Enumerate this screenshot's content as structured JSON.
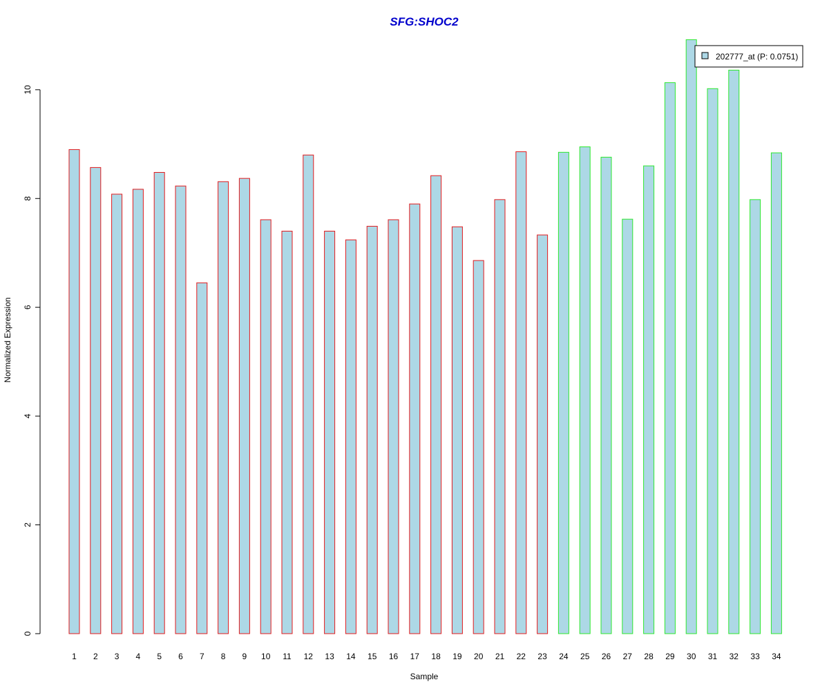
{
  "chart_data": {
    "type": "bar",
    "title": "SFG:SHOC2",
    "xlabel": "Sample",
    "ylabel": "Normalized Expression",
    "ylim": [
      0,
      10.9
    ],
    "yticks": [
      0,
      2,
      4,
      6,
      8,
      10
    ],
    "grid": false,
    "categories": [
      "1",
      "2",
      "3",
      "4",
      "5",
      "6",
      "7",
      "8",
      "9",
      "10",
      "11",
      "12",
      "13",
      "14",
      "15",
      "16",
      "17",
      "18",
      "19",
      "20",
      "21",
      "22",
      "23",
      "24",
      "25",
      "26",
      "27",
      "28",
      "29",
      "30",
      "31",
      "32",
      "33",
      "34"
    ],
    "series": [
      {
        "name": "202777_at (P: 0.0751)",
        "values": [
          8.9,
          8.57,
          8.08,
          8.17,
          8.48,
          8.23,
          6.45,
          8.31,
          8.37,
          7.61,
          7.4,
          8.8,
          7.4,
          7.24,
          7.49,
          7.61,
          7.9,
          8.42,
          7.48,
          6.86,
          7.98,
          8.86,
          7.33,
          8.85,
          8.95,
          8.76,
          7.62,
          8.6,
          10.13,
          10.92,
          10.02,
          10.36,
          7.98,
          8.84
        ]
      }
    ],
    "groups": [
      {
        "from": 1,
        "to": 23,
        "border_color": "#e31a1c"
      },
      {
        "from": 24,
        "to": 34,
        "border_color": "#2ee82e"
      }
    ],
    "fill_color": "#add8e6",
    "title_color": "#0000cc",
    "legend": {
      "placement": "top-right",
      "label": "202777_at (P: 0.0751)"
    }
  }
}
